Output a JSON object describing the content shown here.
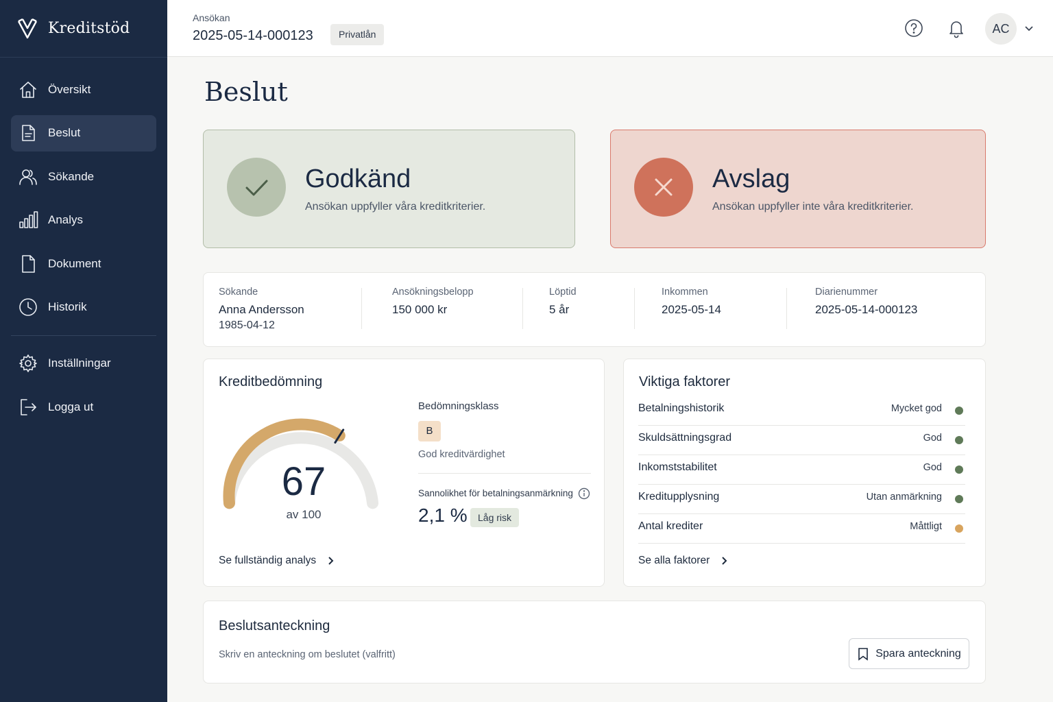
{
  "app": {
    "name": "Kreditstöd"
  },
  "sidebar": {
    "items": [
      {
        "label": "Översikt",
        "icon": "home-icon"
      },
      {
        "label": "Beslut",
        "icon": "document-icon",
        "active": true
      },
      {
        "label": "Sökande",
        "icon": "users-icon"
      },
      {
        "label": "Analys",
        "icon": "bar-chart-icon"
      },
      {
        "label": "Dokument",
        "icon": "file-icon"
      },
      {
        "label": "Historik",
        "icon": "clock-icon"
      }
    ],
    "bottom_items": [
      {
        "label": "Inställningar",
        "icon": "gear-icon"
      },
      {
        "label": "Logga ut",
        "icon": "logout-icon"
      }
    ]
  },
  "header": {
    "crumb": "Ansökan",
    "application_id": "2025-05-14-000123",
    "type_badge": "Privatlån",
    "avatar_initials": "AC"
  },
  "page": {
    "title": "Beslut"
  },
  "decisions": {
    "approved": {
      "title": "Godkänd",
      "subtitle": "Ansökan uppfyller våra kreditkriterier."
    },
    "rejected": {
      "title": "Avslag",
      "subtitle": "Ansökan uppfyller inte våra kreditkriterier."
    }
  },
  "summary": {
    "applicant": {
      "label": "Sökande",
      "name": "Anna Andersson",
      "birthdate": "1985-04-12"
    },
    "amount": {
      "label": "Ansökningsbelopp",
      "value": "150 000 kr"
    },
    "term": {
      "label": "Löptid",
      "value": "5 år"
    },
    "received": {
      "label": "Inkommen",
      "value": "2025-05-14"
    },
    "reference": {
      "label": "Diarienummer",
      "value": "2025-05-14-000123"
    }
  },
  "credit": {
    "title": "Kreditbedömning",
    "score": "67",
    "score_max_label": "av 100",
    "score_fraction": 0.67,
    "class_label": "Bedömningsklass",
    "class": "B",
    "class_desc": "God kreditvärdighet",
    "probability_label": "Sannolikhet för betalningsanmärkning",
    "probability": "2,1 %",
    "risk": "Låg risk",
    "link": "Se fullständig analys",
    "colors": {
      "fill": "#d4a86a",
      "track": "#e8e8e6"
    }
  },
  "factors": {
    "title": "Viktiga faktorer",
    "rows": [
      {
        "name": "Betalningshistorik",
        "value": "Mycket god",
        "color": "#5f7a58"
      },
      {
        "name": "Skuldsättningsgrad",
        "value": "God",
        "color": "#5f7a58"
      },
      {
        "name": "Inkomststabilitet",
        "value": "God",
        "color": "#5f7a58"
      },
      {
        "name": "Kreditupplysning",
        "value": "Utan anmärkning",
        "color": "#5f7a58"
      },
      {
        "name": "Antal krediter",
        "value": "Måttligt",
        "color": "#d8a45e"
      }
    ],
    "link": "Se alla faktorer"
  },
  "note": {
    "title": "Beslutsanteckning",
    "placeholder": "Skriv en anteckning om beslutet (valfritt)",
    "save_label": "Spara anteckning"
  }
}
